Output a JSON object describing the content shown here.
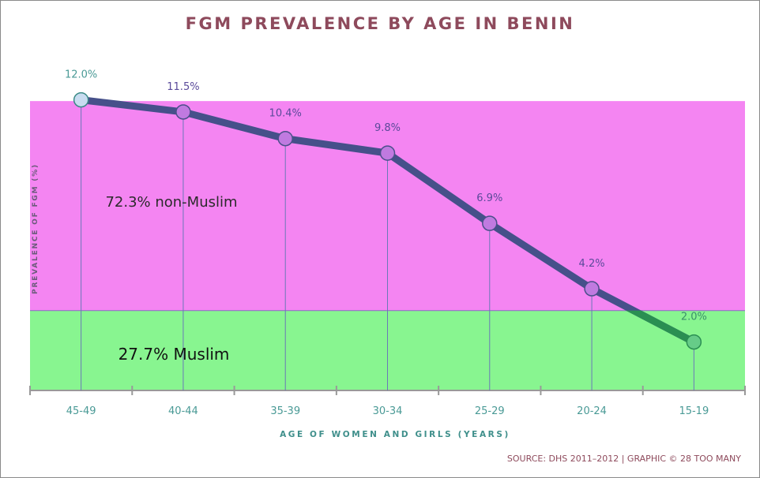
{
  "chart_data": {
    "type": "line",
    "title": "FGM PREVALENCE BY AGE IN BENIN",
    "xlabel": "AGE OF WOMEN AND GIRLS (YEARS)",
    "ylabel": "PREVALENCE OF FGM (%)",
    "categories": [
      "45-49",
      "40-44",
      "35-39",
      "30-34",
      "25-29",
      "20-24",
      "15-19"
    ],
    "values": [
      12.0,
      11.5,
      10.4,
      9.8,
      6.9,
      4.2,
      2.0
    ],
    "data_labels": [
      "12.0%",
      "11.5%",
      "10.4%",
      "9.8%",
      "6.9%",
      "4.2%",
      "2.0%"
    ],
    "ylim": [
      0,
      12.1
    ],
    "bands": [
      {
        "label": "72.3% non-Muslim",
        "from": 3.3,
        "to": 11.95,
        "color": "#f485f2"
      },
      {
        "label": "27.7% Muslim",
        "from": 0,
        "to": 3.3,
        "color": "#88f590"
      }
    ],
    "line_color": "#46508a",
    "line_color_low": "#2a8f52",
    "source": "SOURCE: DHS 2011–2012 | GRAPHIC © 28 TOO MANY"
  }
}
